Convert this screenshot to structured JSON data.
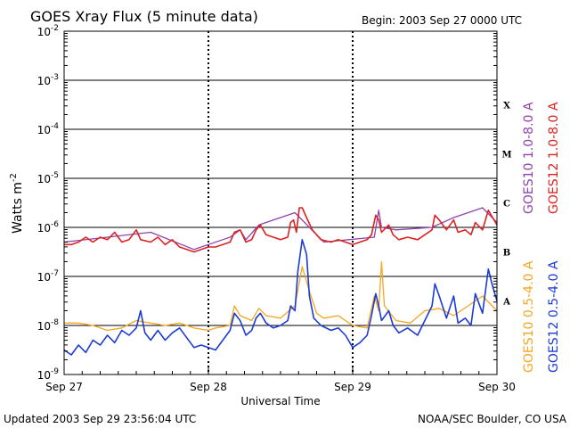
{
  "chart_data": {
    "type": "line",
    "title": "GOES Xray Flux (5 minute data)",
    "begin_label": "Begin:  2003 Sep 27 0000 UTC",
    "xlabel": "Universal Time",
    "ylabel": "Watts m",
    "ylabel_sup": "-2",
    "yscale": "log",
    "ylim": [
      1e-09,
      0.01
    ],
    "xlim_days": [
      0,
      3
    ],
    "x_ticks": [
      {
        "day": 0,
        "label": "Sep 27"
      },
      {
        "day": 1,
        "label": "Sep 28"
      },
      {
        "day": 2,
        "label": "Sep 29"
      },
      {
        "day": 3,
        "label": "Sep 30"
      }
    ],
    "y_ticks": [
      {
        "exp": -9,
        "base": "10",
        "sup": "-9"
      },
      {
        "exp": -8,
        "base": "10",
        "sup": "-8"
      },
      {
        "exp": -7,
        "base": "10",
        "sup": "-7"
      },
      {
        "exp": -6,
        "base": "10",
        "sup": "-6"
      },
      {
        "exp": -5,
        "base": "10",
        "sup": "-5"
      },
      {
        "exp": -4,
        "base": "10",
        "sup": "-4"
      },
      {
        "exp": -3,
        "base": "10",
        "sup": "-3"
      },
      {
        "exp": -2,
        "base": "10",
        "sup": "-2"
      }
    ],
    "flare_classes": [
      {
        "label": "X",
        "exp": -3.5
      },
      {
        "label": "M",
        "exp": -4.5
      },
      {
        "label": "C",
        "exp": -5.5
      },
      {
        "label": "B",
        "exp": -6.5
      },
      {
        "label": "A",
        "exp": -7.5
      }
    ],
    "series": [
      {
        "name": "GOES10 1.0-8.0 A",
        "color": "#8e44ad",
        "points": [
          [
            0,
            -6.3
          ],
          [
            0.3,
            -6.2
          ],
          [
            0.6,
            -6.1
          ],
          [
            0.9,
            -6.45
          ],
          [
            1.15,
            -6.2
          ],
          [
            1.22,
            -6.05
          ],
          [
            1.26,
            -6.25
          ],
          [
            1.35,
            -5.95
          ],
          [
            1.6,
            -5.7
          ],
          [
            1.8,
            -6.3
          ],
          [
            2.15,
            -6.2
          ],
          [
            2.18,
            -5.65
          ],
          [
            2.2,
            -6.0
          ],
          [
            2.3,
            -6.05
          ],
          [
            2.55,
            -6.0
          ],
          [
            2.7,
            -5.8
          ],
          [
            2.9,
            -5.6
          ],
          [
            3,
            -5.9
          ]
        ]
      },
      {
        "name": "GOES12 1.0-8.0 A",
        "color": "#dd2222",
        "points": [
          [
            0,
            -6.35
          ],
          [
            0.05,
            -6.35
          ],
          [
            0.1,
            -6.3
          ],
          [
            0.15,
            -6.2
          ],
          [
            0.2,
            -6.3
          ],
          [
            0.25,
            -6.2
          ],
          [
            0.3,
            -6.25
          ],
          [
            0.35,
            -6.1
          ],
          [
            0.4,
            -6.3
          ],
          [
            0.45,
            -6.25
          ],
          [
            0.5,
            -6.05
          ],
          [
            0.53,
            -6.25
          ],
          [
            0.6,
            -6.3
          ],
          [
            0.65,
            -6.2
          ],
          [
            0.7,
            -6.35
          ],
          [
            0.75,
            -6.25
          ],
          [
            0.8,
            -6.4
          ],
          [
            0.85,
            -6.45
          ],
          [
            0.9,
            -6.5
          ],
          [
            0.95,
            -6.45
          ],
          [
            1.0,
            -6.4
          ],
          [
            1.05,
            -6.4
          ],
          [
            1.1,
            -6.35
          ],
          [
            1.15,
            -6.3
          ],
          [
            1.18,
            -6.1
          ],
          [
            1.22,
            -6.05
          ],
          [
            1.26,
            -6.3
          ],
          [
            1.3,
            -6.25
          ],
          [
            1.33,
            -6.05
          ],
          [
            1.36,
            -5.95
          ],
          [
            1.4,
            -6.15
          ],
          [
            1.45,
            -6.2
          ],
          [
            1.5,
            -6.25
          ],
          [
            1.55,
            -6.2
          ],
          [
            1.57,
            -5.9
          ],
          [
            1.59,
            -5.85
          ],
          [
            1.61,
            -6.1
          ],
          [
            1.63,
            -5.6
          ],
          [
            1.65,
            -5.6
          ],
          [
            1.68,
            -5.8
          ],
          [
            1.72,
            -6.05
          ],
          [
            1.78,
            -6.25
          ],
          [
            1.85,
            -6.3
          ],
          [
            1.9,
            -6.25
          ],
          [
            1.95,
            -6.3
          ],
          [
            2.0,
            -6.35
          ],
          [
            2.05,
            -6.3
          ],
          [
            2.1,
            -6.25
          ],
          [
            2.13,
            -6.15
          ],
          [
            2.16,
            -5.75
          ],
          [
            2.18,
            -5.85
          ],
          [
            2.2,
            -6.1
          ],
          [
            2.25,
            -5.95
          ],
          [
            2.28,
            -6.15
          ],
          [
            2.32,
            -6.25
          ],
          [
            2.38,
            -6.2
          ],
          [
            2.45,
            -6.25
          ],
          [
            2.5,
            -6.15
          ],
          [
            2.55,
            -6.05
          ],
          [
            2.57,
            -5.75
          ],
          [
            2.6,
            -5.85
          ],
          [
            2.65,
            -6.05
          ],
          [
            2.7,
            -5.85
          ],
          [
            2.73,
            -6.1
          ],
          [
            2.78,
            -6.05
          ],
          [
            2.82,
            -6.15
          ],
          [
            2.85,
            -5.9
          ],
          [
            2.9,
            -6.05
          ],
          [
            2.94,
            -5.65
          ],
          [
            2.97,
            -5.8
          ],
          [
            3.0,
            -5.95
          ]
        ]
      },
      {
        "name": "GOES10 0.5-4.0 A",
        "color": "#f5a623",
        "points": [
          [
            0,
            -7.95
          ],
          [
            0.1,
            -7.95
          ],
          [
            0.2,
            -8.0
          ],
          [
            0.3,
            -8.1
          ],
          [
            0.4,
            -8.05
          ],
          [
            0.5,
            -7.9
          ],
          [
            0.6,
            -7.95
          ],
          [
            0.7,
            -8.0
          ],
          [
            0.8,
            -7.95
          ],
          [
            0.9,
            -8.05
          ],
          [
            1.0,
            -8.1
          ],
          [
            1.05,
            -8.05
          ],
          [
            1.15,
            -8.0
          ],
          [
            1.18,
            -7.6
          ],
          [
            1.22,
            -7.8
          ],
          [
            1.3,
            -7.9
          ],
          [
            1.35,
            -7.65
          ],
          [
            1.4,
            -7.8
          ],
          [
            1.5,
            -7.85
          ],
          [
            1.6,
            -7.6
          ],
          [
            1.65,
            -6.8
          ],
          [
            1.7,
            -7.3
          ],
          [
            1.75,
            -7.75
          ],
          [
            1.8,
            -7.85
          ],
          [
            1.9,
            -7.8
          ],
          [
            2.0,
            -8.0
          ],
          [
            2.1,
            -8.05
          ],
          [
            2.15,
            -7.4
          ],
          [
            2.18,
            -7.7
          ],
          [
            2.2,
            -6.7
          ],
          [
            2.22,
            -7.6
          ],
          [
            2.3,
            -7.9
          ],
          [
            2.4,
            -7.95
          ],
          [
            2.5,
            -7.7
          ],
          [
            2.6,
            -7.65
          ],
          [
            2.7,
            -7.8
          ],
          [
            2.8,
            -7.6
          ],
          [
            2.9,
            -7.4
          ],
          [
            3.0,
            -7.7
          ]
        ]
      },
      {
        "name": "GOES12 0.5-4.0 A",
        "color": "#1c3bd6",
        "points": [
          [
            0,
            -8.5
          ],
          [
            0.05,
            -8.6
          ],
          [
            0.1,
            -8.4
          ],
          [
            0.15,
            -8.55
          ],
          [
            0.2,
            -8.3
          ],
          [
            0.25,
            -8.4
          ],
          [
            0.3,
            -8.2
          ],
          [
            0.35,
            -8.35
          ],
          [
            0.4,
            -8.1
          ],
          [
            0.45,
            -8.2
          ],
          [
            0.5,
            -8.05
          ],
          [
            0.53,
            -7.7
          ],
          [
            0.56,
            -8.15
          ],
          [
            0.6,
            -8.3
          ],
          [
            0.65,
            -8.1
          ],
          [
            0.7,
            -8.3
          ],
          [
            0.75,
            -8.15
          ],
          [
            0.8,
            -8.05
          ],
          [
            0.85,
            -8.25
          ],
          [
            0.9,
            -8.45
          ],
          [
            0.95,
            -8.4
          ],
          [
            1.0,
            -8.45
          ],
          [
            1.05,
            -8.5
          ],
          [
            1.1,
            -8.3
          ],
          [
            1.15,
            -8.1
          ],
          [
            1.18,
            -7.75
          ],
          [
            1.22,
            -7.9
          ],
          [
            1.26,
            -8.2
          ],
          [
            1.3,
            -8.1
          ],
          [
            1.33,
            -7.85
          ],
          [
            1.36,
            -7.75
          ],
          [
            1.4,
            -7.95
          ],
          [
            1.45,
            -8.05
          ],
          [
            1.5,
            -8.0
          ],
          [
            1.55,
            -7.9
          ],
          [
            1.57,
            -7.6
          ],
          [
            1.6,
            -7.7
          ],
          [
            1.62,
            -6.9
          ],
          [
            1.65,
            -6.25
          ],
          [
            1.68,
            -6.55
          ],
          [
            1.7,
            -7.4
          ],
          [
            1.73,
            -7.85
          ],
          [
            1.78,
            -8.0
          ],
          [
            1.85,
            -8.1
          ],
          [
            1.9,
            -8.05
          ],
          [
            1.95,
            -8.2
          ],
          [
            2.0,
            -8.45
          ],
          [
            2.05,
            -8.35
          ],
          [
            2.1,
            -8.2
          ],
          [
            2.13,
            -7.8
          ],
          [
            2.16,
            -7.35
          ],
          [
            2.18,
            -7.6
          ],
          [
            2.2,
            -7.9
          ],
          [
            2.25,
            -7.7
          ],
          [
            2.28,
            -8.0
          ],
          [
            2.32,
            -8.15
          ],
          [
            2.38,
            -8.05
          ],
          [
            2.45,
            -8.2
          ],
          [
            2.5,
            -7.9
          ],
          [
            2.55,
            -7.6
          ],
          [
            2.57,
            -7.15
          ],
          [
            2.6,
            -7.4
          ],
          [
            2.65,
            -7.85
          ],
          [
            2.7,
            -7.4
          ],
          [
            2.73,
            -7.95
          ],
          [
            2.78,
            -7.85
          ],
          [
            2.82,
            -8.0
          ],
          [
            2.85,
            -7.35
          ],
          [
            2.9,
            -7.75
          ],
          [
            2.94,
            -6.85
          ],
          [
            2.97,
            -7.2
          ],
          [
            3.0,
            -7.5
          ]
        ]
      }
    ]
  },
  "footer": {
    "updated": "Updated 2003 Sep 29 23:56:04 UTC",
    "credit": "NOAA/SEC Boulder, CO USA"
  }
}
